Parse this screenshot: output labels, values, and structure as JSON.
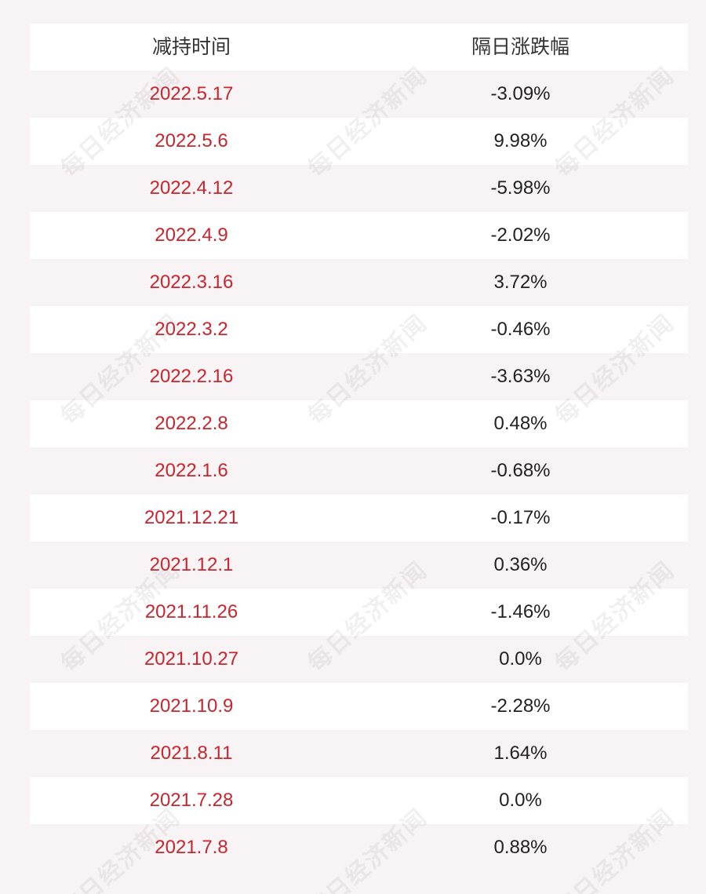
{
  "table": {
    "headers": [
      "减持时间",
      "隔日涨跌幅"
    ],
    "rows": [
      {
        "date": "2022.5.17",
        "change": "-3.09%"
      },
      {
        "date": "2022.5.6",
        "change": "9.98%"
      },
      {
        "date": "2022.4.12",
        "change": "-5.98%"
      },
      {
        "date": "2022.4.9",
        "change": "-2.02%"
      },
      {
        "date": "2022.3.16",
        "change": "3.72%"
      },
      {
        "date": "2022.3.2",
        "change": "-0.46%"
      },
      {
        "date": "2022.2.16",
        "change": "-3.63%"
      },
      {
        "date": "2022.2.8",
        "change": "0.48%"
      },
      {
        "date": "2022.1.6",
        "change": "-0.68%"
      },
      {
        "date": "2021.12.21",
        "change": "-0.17%"
      },
      {
        "date": "2021.12.1",
        "change": "0.36%"
      },
      {
        "date": "2021.11.26",
        "change": "-1.46%"
      },
      {
        "date": "2021.10.27",
        "change": "0.0%"
      },
      {
        "date": "2021.10.9",
        "change": "-2.28%"
      },
      {
        "date": "2021.8.11",
        "change": "1.64%"
      },
      {
        "date": "2021.7.28",
        "change": "0.0%"
      },
      {
        "date": "2021.7.8",
        "change": "0.88%"
      }
    ]
  },
  "watermark": {
    "text": "每日经济新闻"
  },
  "colors": {
    "background": "#f8f3f4",
    "row_white": "#ffffff",
    "date_red": "#c9252e",
    "value_text": "#222222"
  }
}
